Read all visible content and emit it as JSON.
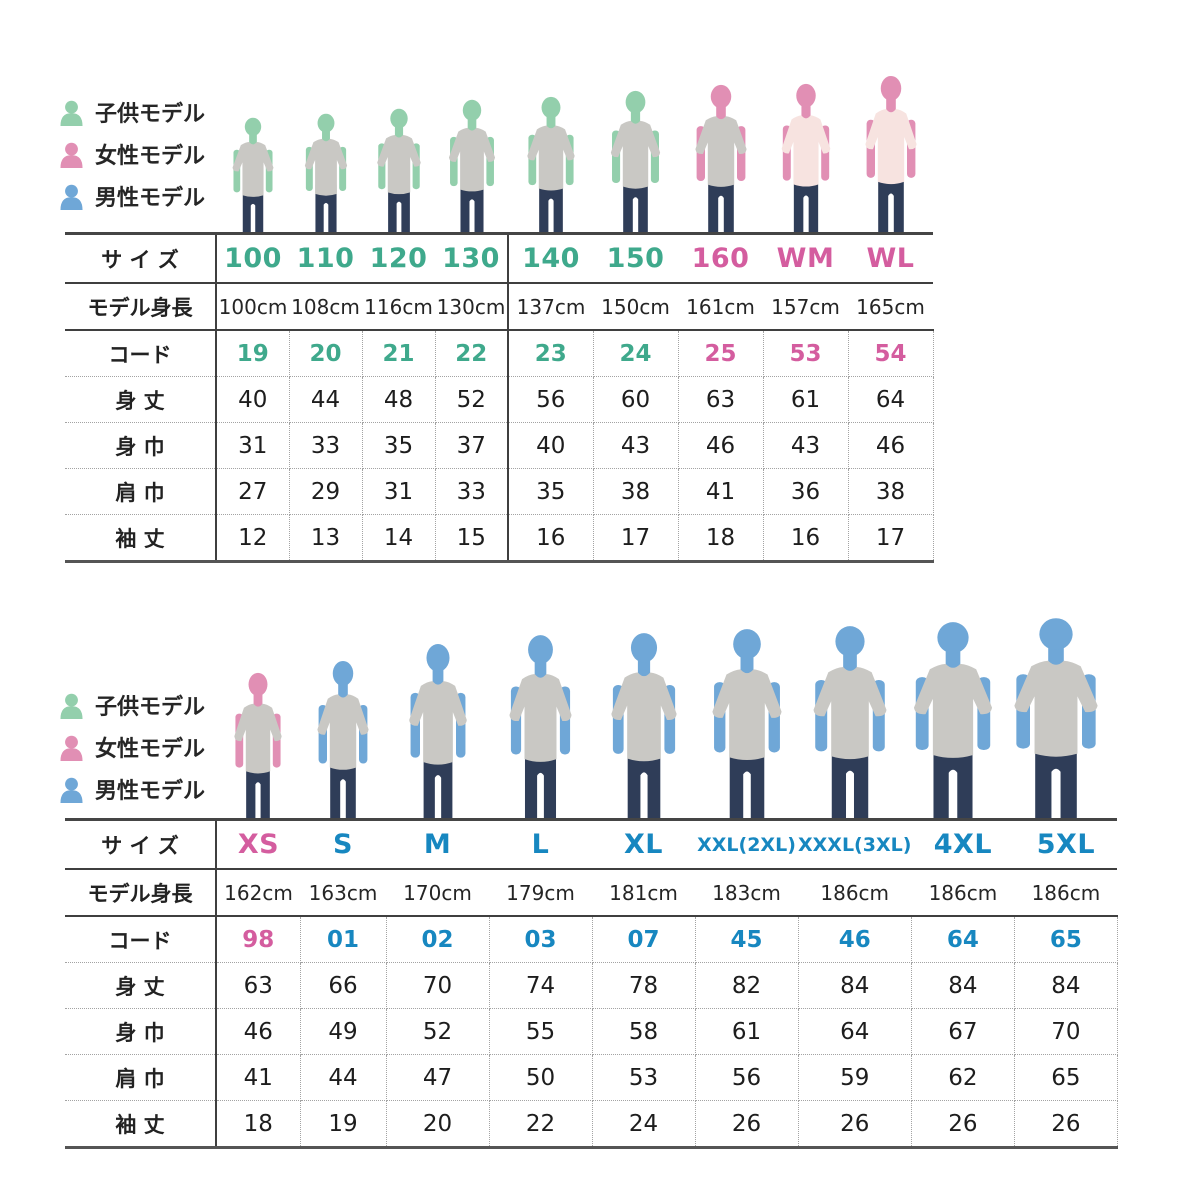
{
  "palette": {
    "text": {
      "kid": "#3fa98c",
      "woman": "#d45d9f",
      "man": "#1787c0"
    },
    "skin": {
      "kid": "#93cfac",
      "woman": "#e18fb4",
      "man": "#6fa7d7"
    },
    "shirt": {
      "gray": "#c9c8c4",
      "pink": "#f7e3e0"
    },
    "jeans": "#2f3d58"
  },
  "legend": {
    "items": [
      {
        "key": "kid",
        "label": "子供モデル"
      },
      {
        "key": "woman",
        "label": "女性モデル"
      },
      {
        "key": "man",
        "label": "男性モデル"
      }
    ]
  },
  "row_labels": {
    "size": "サ イ ズ",
    "model_height": "モデル身長",
    "code": "コード",
    "body_length": "身 丈",
    "body_width": "身 巾",
    "shoulder_width": "肩 巾",
    "sleeve_length": "袖 丈"
  },
  "tables": [
    {
      "name": "kids-women",
      "divider_after_index": 3,
      "columns": [
        {
          "size": "100",
          "model": "kid",
          "shirt": "gray",
          "model_height": "100cm",
          "code": "19",
          "body_length": "40",
          "body_width": "31",
          "shoulder_width": "27",
          "sleeve_length": "12"
        },
        {
          "size": "110",
          "model": "kid",
          "shirt": "gray",
          "model_height": "108cm",
          "code": "20",
          "body_length": "44",
          "body_width": "33",
          "shoulder_width": "29",
          "sleeve_length": "13"
        },
        {
          "size": "120",
          "model": "kid",
          "shirt": "gray",
          "model_height": "116cm",
          "code": "21",
          "body_length": "48",
          "body_width": "35",
          "shoulder_width": "31",
          "sleeve_length": "14"
        },
        {
          "size": "130",
          "model": "kid",
          "shirt": "gray",
          "model_height": "130cm",
          "code": "22",
          "body_length": "52",
          "body_width": "37",
          "shoulder_width": "33",
          "sleeve_length": "15"
        },
        {
          "size": "140",
          "model": "kid",
          "shirt": "gray",
          "model_height": "137cm",
          "code": "23",
          "body_length": "56",
          "body_width": "40",
          "shoulder_width": "35",
          "sleeve_length": "16"
        },
        {
          "size": "150",
          "model": "kid",
          "shirt": "gray",
          "model_height": "150cm",
          "code": "24",
          "body_length": "60",
          "body_width": "43",
          "shoulder_width": "38",
          "sleeve_length": "17"
        },
        {
          "size": "160",
          "model": "woman",
          "shirt": "gray",
          "model_height": "161cm",
          "code": "25",
          "body_length": "63",
          "body_width": "46",
          "shoulder_width": "41",
          "sleeve_length": "18"
        },
        {
          "size": "WM",
          "model": "woman",
          "shirt": "pink",
          "model_height": "157cm",
          "code": "53",
          "body_length": "61",
          "body_width": "43",
          "shoulder_width": "36",
          "sleeve_length": "16"
        },
        {
          "size": "WL",
          "model": "woman",
          "shirt": "pink",
          "model_height": "165cm",
          "code": "54",
          "body_length": "64",
          "body_width": "46",
          "shoulder_width": "38",
          "sleeve_length": "17"
        }
      ]
    },
    {
      "name": "adults",
      "divider_after_index": -1,
      "columns": [
        {
          "size": "XS",
          "model": "woman",
          "shirt": "gray",
          "model_height": "162cm",
          "code": "98",
          "body_length": "63",
          "body_width": "46",
          "shoulder_width": "41",
          "sleeve_length": "18"
        },
        {
          "size": "S",
          "model": "man",
          "shirt": "gray",
          "model_height": "163cm",
          "code": "01",
          "body_length": "66",
          "body_width": "49",
          "shoulder_width": "44",
          "sleeve_length": "19"
        },
        {
          "size": "M",
          "model": "man",
          "shirt": "gray",
          "model_height": "170cm",
          "code": "02",
          "body_length": "70",
          "body_width": "52",
          "shoulder_width": "47",
          "sleeve_length": "20"
        },
        {
          "size": "L",
          "model": "man",
          "shirt": "gray",
          "model_height": "179cm",
          "code": "03",
          "body_length": "74",
          "body_width": "55",
          "shoulder_width": "50",
          "sleeve_length": "22"
        },
        {
          "size": "XL",
          "model": "man",
          "shirt": "gray",
          "model_height": "181cm",
          "code": "07",
          "body_length": "78",
          "body_width": "58",
          "shoulder_width": "53",
          "sleeve_length": "24"
        },
        {
          "size": "XXL(2XL)",
          "model": "man",
          "shirt": "gray",
          "model_height": "183cm",
          "code": "45",
          "body_length": "82",
          "body_width": "61",
          "shoulder_width": "56",
          "sleeve_length": "26"
        },
        {
          "size": "XXXL(3XL)",
          "model": "man",
          "shirt": "gray",
          "model_height": "186cm",
          "code": "46",
          "body_length": "84",
          "body_width": "64",
          "shoulder_width": "59",
          "sleeve_length": "26"
        },
        {
          "size": "4XL",
          "model": "man",
          "shirt": "gray",
          "model_height": "186cm",
          "code": "64",
          "body_length": "84",
          "body_width": "67",
          "shoulder_width": "62",
          "sleeve_length": "26"
        },
        {
          "size": "5XL",
          "model": "man",
          "shirt": "gray",
          "model_height": "186cm",
          "code": "65",
          "body_length": "84",
          "body_width": "70",
          "shoulder_width": "65",
          "sleeve_length": "26"
        }
      ]
    }
  ]
}
